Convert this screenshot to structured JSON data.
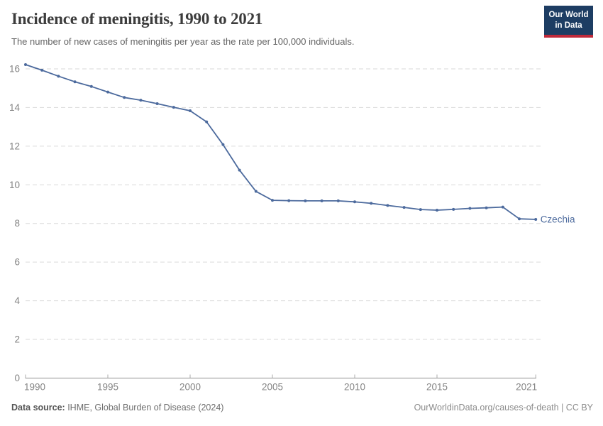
{
  "header": {
    "title": "Incidence of meningitis, 1990 to 2021",
    "subtitle": "The number of new cases of meningitis per year as the rate per 100,000 individuals.",
    "logo": {
      "line1": "Our World",
      "line2": "in Data"
    }
  },
  "footer": {
    "datasource_label": "Data source:",
    "datasource_value": " IHME, Global Burden of Disease (2024)",
    "link": "OurWorldinData.org/causes-of-death | CC BY"
  },
  "colors": {
    "line": "#4c6a9d",
    "logo_bg": "#1d3d63",
    "logo_red": "#c0293a",
    "grid": "#dadada",
    "axis": "#8f8f8f",
    "tick_label": "#858585",
    "title": "#3c3c3c",
    "subtitle": "#636363"
  },
  "chart_data": {
    "type": "line",
    "title": "Incidence of meningitis, 1990 to 2021",
    "subtitle": "The number of new cases of meningitis per year as the rate per 100,000 individuals.",
    "entity_label": "Czechia",
    "grid": "horizontal-dashed",
    "legend_position": "end-of-line-label",
    "xlim": [
      1990,
      2021
    ],
    "ylim": [
      0,
      16.3
    ],
    "x_ticks": [
      1990,
      1995,
      2000,
      2005,
      2010,
      2015,
      2021
    ],
    "y_ticks": [
      0,
      2,
      4,
      6,
      8,
      10,
      12,
      14,
      16
    ],
    "series": [
      {
        "name": "Czechia",
        "color": "#4c6a9d",
        "x": [
          1990,
          1991,
          1992,
          1993,
          1994,
          1995,
          1996,
          1997,
          1998,
          1999,
          2000,
          2001,
          2002,
          2003,
          2004,
          2005,
          2006,
          2007,
          2008,
          2009,
          2010,
          2011,
          2012,
          2013,
          2014,
          2015,
          2016,
          2017,
          2018,
          2019,
          2020,
          2021
        ],
        "values": [
          16.22,
          15.93,
          15.62,
          15.33,
          15.09,
          14.8,
          14.52,
          14.38,
          14.2,
          14.01,
          13.83,
          13.26,
          12.08,
          10.76,
          9.66,
          9.2,
          9.18,
          9.17,
          9.17,
          9.17,
          9.12,
          9.04,
          8.93,
          8.83,
          8.72,
          8.69,
          8.73,
          8.78,
          8.81,
          8.85,
          8.24,
          8.21
        ]
      }
    ]
  }
}
